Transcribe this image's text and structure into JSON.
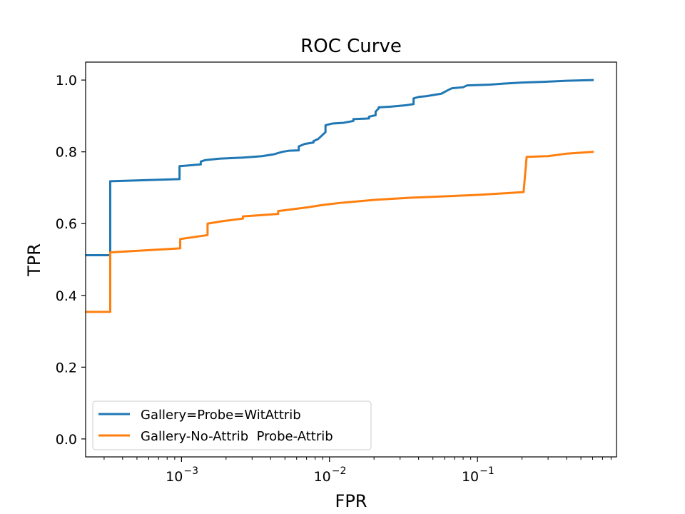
{
  "chart_data": {
    "type": "line",
    "title": "ROC Curve",
    "xlabel": "FPR",
    "ylabel": "TPR",
    "xscale": "log",
    "xlim": [
      0.000225,
      0.87
    ],
    "ylim": [
      -0.05,
      1.05
    ],
    "x_ticks": [
      {
        "value": 0.001,
        "base": "10",
        "exp": "−3"
      },
      {
        "value": 0.01,
        "base": "10",
        "exp": "−2"
      },
      {
        "value": 0.1,
        "base": "10",
        "exp": "−1"
      }
    ],
    "y_ticks": [
      {
        "value": 0.0,
        "label": "0.0"
      },
      {
        "value": 0.2,
        "label": "0.2"
      },
      {
        "value": 0.4,
        "label": "0.4"
      },
      {
        "value": 0.6,
        "label": "0.6"
      },
      {
        "value": 0.8,
        "label": "0.8"
      },
      {
        "value": 1.0,
        "label": "1.0"
      }
    ],
    "grid": false,
    "legend_position": "lower-left",
    "series": [
      {
        "name": "Gallery=Probe=WitAttrib",
        "color": "#1f77b4",
        "x": [
          0.000225,
          0.00033,
          0.00033,
          0.00097,
          0.00097,
          0.00135,
          0.00135,
          0.00145,
          0.0018,
          0.0026,
          0.0035,
          0.0042,
          0.0048,
          0.0053,
          0.0062,
          0.0062,
          0.0068,
          0.0078,
          0.0078,
          0.0084,
          0.0094,
          0.0094,
          0.0105,
          0.0125,
          0.0145,
          0.0145,
          0.0185,
          0.0185,
          0.0205,
          0.0205,
          0.0215,
          0.0215,
          0.026,
          0.033,
          0.037,
          0.037,
          0.04,
          0.045,
          0.057,
          0.064,
          0.067,
          0.08,
          0.085,
          0.12,
          0.15,
          0.2,
          0.28,
          0.4,
          0.6
        ],
        "y": [
          0.512,
          0.512,
          0.718,
          0.724,
          0.76,
          0.765,
          0.773,
          0.777,
          0.781,
          0.784,
          0.788,
          0.793,
          0.8,
          0.803,
          0.804,
          0.815,
          0.822,
          0.826,
          0.83,
          0.836,
          0.855,
          0.874,
          0.879,
          0.881,
          0.886,
          0.891,
          0.893,
          0.898,
          0.902,
          0.912,
          0.921,
          0.924,
          0.926,
          0.93,
          0.933,
          0.949,
          0.953,
          0.955,
          0.962,
          0.973,
          0.977,
          0.98,
          0.985,
          0.987,
          0.99,
          0.993,
          0.995,
          0.998,
          1.0
        ]
      },
      {
        "name": "Gallery-No-Attrib  Probe-Attrib",
        "color": "#ff7f0e",
        "x": [
          0.000225,
          0.00033,
          0.00033,
          0.00098,
          0.00098,
          0.0015,
          0.0015,
          0.0019,
          0.0026,
          0.0026,
          0.0045,
          0.0045,
          0.007,
          0.009,
          0.012,
          0.02,
          0.035,
          0.06,
          0.1,
          0.16,
          0.205,
          0.215,
          0.3,
          0.4,
          0.6
        ],
        "y": [
          0.354,
          0.354,
          0.52,
          0.531,
          0.557,
          0.568,
          0.6,
          0.607,
          0.614,
          0.62,
          0.627,
          0.635,
          0.645,
          0.652,
          0.658,
          0.666,
          0.672,
          0.676,
          0.68,
          0.685,
          0.688,
          0.786,
          0.788,
          0.795,
          0.8
        ]
      }
    ]
  }
}
